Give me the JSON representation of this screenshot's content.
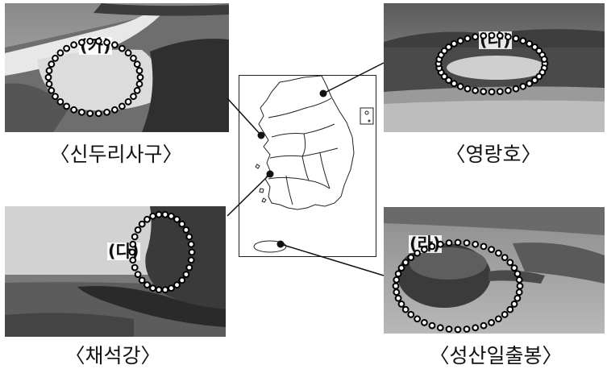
{
  "photos": [
    {
      "id": "sinduri",
      "caption": "〈신두리사구〉",
      "marker": "(가)"
    },
    {
      "id": "yeongnang",
      "caption": "〈영랑호〉",
      "marker": "(나)"
    },
    {
      "id": "chaeseokgang",
      "caption": "〈채석강〉",
      "marker": "(다)"
    },
    {
      "id": "seongsan",
      "caption": "〈성산일출봉〉",
      "marker": "(라)"
    }
  ],
  "map": {
    "subject": "South Korea administrative map"
  },
  "colors": {
    "ink": "#111111",
    "dots": "#000000",
    "dot_fill": "#ffffff"
  }
}
